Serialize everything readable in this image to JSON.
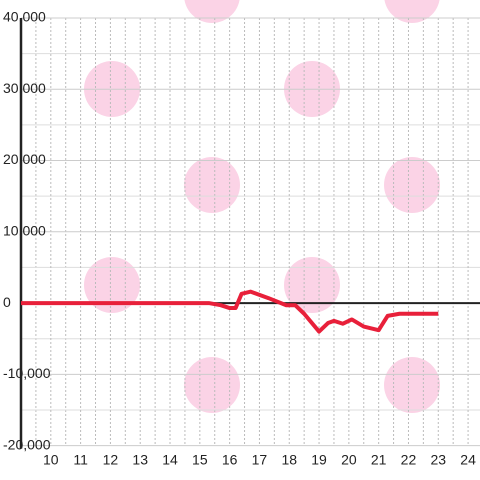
{
  "chart_data": {
    "type": "line",
    "x": [
      9,
      15.3,
      15.7,
      16.0,
      16.2,
      16.4,
      16.7,
      17.3,
      17.9,
      18.2,
      18.5,
      19.0,
      19.3,
      19.5,
      19.8,
      20.1,
      20.5,
      21.0,
      21.3,
      21.7,
      23.0
    ],
    "series": [
      {
        "color": "#e8203a",
        "values": [
          0,
          0,
          -300,
          -700,
          -700,
          1300,
          1600,
          700,
          -300,
          -300,
          -1500,
          -4000,
          -2800,
          -2500,
          -2900,
          -2300,
          -3300,
          -3800,
          -1800,
          -1500,
          -1500
        ]
      }
    ],
    "xlim": [
      9,
      24.4
    ],
    "xticks": [
      10,
      11,
      12,
      13,
      14,
      15,
      16,
      17,
      18,
      19,
      20,
      21,
      22,
      23,
      24
    ],
    "ylim": [
      -20000,
      40000
    ],
    "yticks": [
      {
        "value": -20000,
        "label": "-20,000"
      },
      {
        "value": -10000,
        "label": "-10,000"
      },
      0,
      {
        "value": 10000,
        "label": "10,000"
      },
      {
        "value": 20000,
        "label": "20,000"
      },
      {
        "value": 30000,
        "label": "30,000"
      },
      {
        "value": 40000,
        "label": "40,000"
      }
    ],
    "grid": true
  }
}
